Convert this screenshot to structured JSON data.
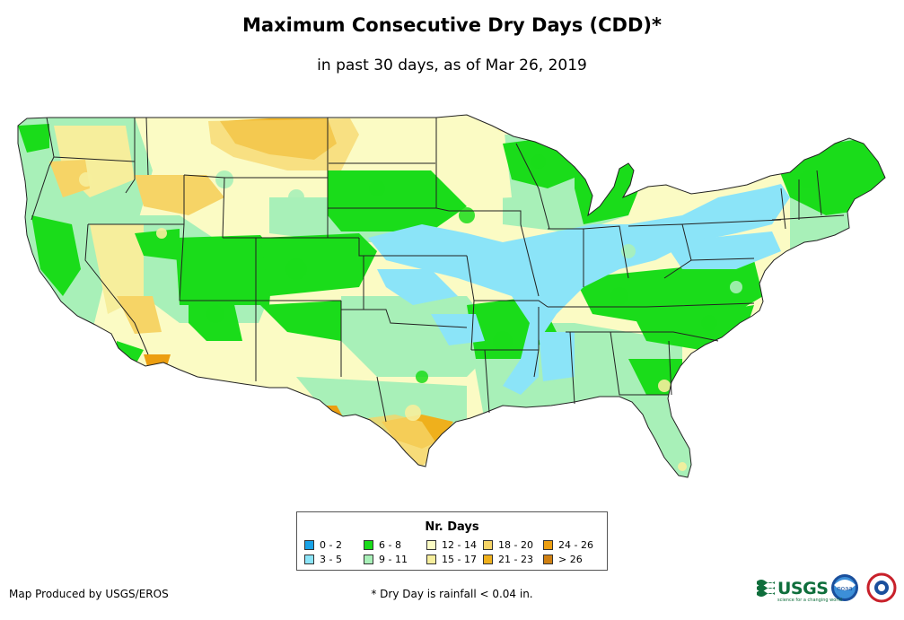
{
  "title": "Maximum Consecutive Dry Days (CDD)*",
  "subtitle": "in past 30 days, as of Mar 26, 2019",
  "legend": {
    "title": "Nr. Days",
    "items": [
      {
        "label": "0 - 2",
        "color": "#1aa3e8"
      },
      {
        "label": "3 - 5",
        "color": "#8be4f8"
      },
      {
        "label": "6 - 8",
        "color": "#1adc1a"
      },
      {
        "label": "9 - 11",
        "color": "#a8f0b8"
      },
      {
        "label": "12 - 14",
        "color": "#fbfbc4"
      },
      {
        "label": "15 - 17",
        "color": "#f6ee9c"
      },
      {
        "label": "18 - 20",
        "color": "#f6d466"
      },
      {
        "label": "21 - 23",
        "color": "#efb01c"
      },
      {
        "label": "24 - 26",
        "color": "#ec9e10"
      },
      {
        "label": "> 26",
        "color": "#cf8012"
      }
    ]
  },
  "credit": "Map Produced by USGS/EROS",
  "footnote": "* Dry Day is rainfall < 0.04 in.",
  "logos": {
    "usgs": "USGS",
    "usgs_tagline": "science for a changing world",
    "noaa": "noaa"
  }
}
